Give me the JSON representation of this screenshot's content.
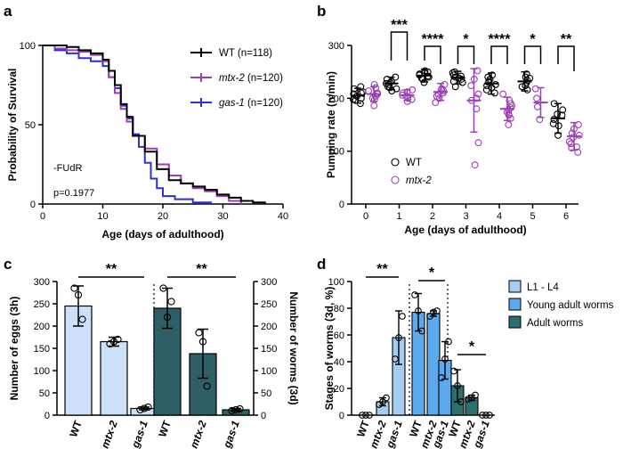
{
  "figure": {
    "labels": [
      "a",
      "b",
      "c",
      "d"
    ]
  },
  "chart_data": [
    {
      "panel": "a",
      "type": "line",
      "subtype": "survival-step",
      "xlabel": "Age (days of adulthood)",
      "ylabel": "Probability of Survival",
      "xlim": [
        0,
        40
      ],
      "ylim": [
        0,
        100
      ],
      "xticks": [
        0,
        10,
        20,
        30,
        40
      ],
      "yticks": [
        0,
        50,
        100
      ],
      "annotations": [
        "-FUdR",
        "p=0.1977"
      ],
      "series": [
        {
          "name": "WT",
          "legend": "WT (n=118)",
          "italic": false,
          "color": "#000000",
          "points": [
            [
              0,
              100
            ],
            [
              2,
              100
            ],
            [
              4,
              99
            ],
            [
              6,
              97
            ],
            [
              8,
              95
            ],
            [
              10,
              91
            ],
            [
              11,
              84
            ],
            [
              12,
              75
            ],
            [
              13,
              63
            ],
            [
              14,
              55
            ],
            [
              15,
              43
            ],
            [
              17,
              33
            ],
            [
              19,
              22
            ],
            [
              21,
              15
            ],
            [
              23,
              13
            ],
            [
              25,
              11
            ],
            [
              27,
              9
            ],
            [
              29,
              6
            ],
            [
              31,
              4
            ],
            [
              33,
              2
            ],
            [
              35,
              1
            ],
            [
              37,
              0
            ]
          ]
        },
        {
          "name": "mtx-2",
          "legend": "mtx-2 (n=120)",
          "italic": true,
          "color": "#9b3fb5",
          "points": [
            [
              0,
              100
            ],
            [
              2,
              98
            ],
            [
              4,
              97
            ],
            [
              6,
              96
            ],
            [
              8,
              94
            ],
            [
              10,
              90
            ],
            [
              11,
              80
            ],
            [
              12,
              70
            ],
            [
              13,
              60
            ],
            [
              14,
              52
            ],
            [
              15,
              43
            ],
            [
              17,
              35
            ],
            [
              19,
              25
            ],
            [
              21,
              18
            ],
            [
              23,
              13
            ],
            [
              25,
              10
            ],
            [
              27,
              8
            ],
            [
              29,
              5
            ],
            [
              31,
              2
            ],
            [
              33,
              0
            ]
          ]
        },
        {
          "name": "gas-1",
          "legend": "gas-1 (n=120)",
          "italic": true,
          "color": "#2f2fd8",
          "points": [
            [
              0,
              100
            ],
            [
              2,
              97
            ],
            [
              4,
              95
            ],
            [
              6,
              92
            ],
            [
              8,
              90
            ],
            [
              10,
              87
            ],
            [
              11,
              80
            ],
            [
              12,
              73
            ],
            [
              13,
              62
            ],
            [
              14,
              54
            ],
            [
              15,
              44
            ],
            [
              16,
              36
            ],
            [
              17,
              26
            ],
            [
              18,
              16
            ],
            [
              19,
              10
            ],
            [
              20,
              5
            ],
            [
              22,
              3
            ],
            [
              25,
              1
            ],
            [
              28,
              0
            ]
          ]
        }
      ]
    },
    {
      "panel": "b",
      "type": "scatter",
      "subtype": "dot-plot-mean-sd",
      "xlabel": "Age (days of adulthood)",
      "ylabel": "Pumping rate (n/min)",
      "ylim": [
        0,
        300
      ],
      "yticks": [
        0,
        100,
        200,
        300
      ],
      "categories": [
        "0",
        "1",
        "2",
        "3",
        "4",
        "5",
        "6"
      ],
      "legend": [
        "WT",
        "mtx-2"
      ],
      "series": [
        {
          "name": "WT",
          "color": "#000000",
          "mean": [
            205,
            228,
            243,
            239,
            228,
            232,
            162
          ],
          "sd": [
            14,
            12,
            12,
            12,
            20,
            18,
            28
          ],
          "points": [
            [
              190,
              198,
              204,
              210,
              218,
              200,
              208,
              212,
              196,
              222
            ],
            [
              214,
              220,
              226,
              232,
              236,
              228,
              240,
              222,
              230,
              218
            ],
            [
              230,
              236,
              240,
              246,
              250,
              244,
              252,
              238,
              248,
              242
            ],
            [
              222,
              230,
              238,
              244,
              250,
              236,
              242,
              248,
              232,
              240
            ],
            [
              210,
              220,
              226,
              232,
              240,
              224,
              236,
              216,
              244,
              230
            ],
            [
              216,
              224,
              230,
              238,
              246,
              222,
              234,
              240
            ],
            [
              130,
              148,
              160,
              170,
              178,
              190,
              152,
              168
            ]
          ]
        },
        {
          "name": "mtx-2",
          "color": "#9b3fb5",
          "mean": [
            208,
            206,
            212,
            196,
            180,
            192,
            128
          ],
          "sd": [
            14,
            10,
            16,
            60,
            22,
            28,
            26
          ],
          "points": [
            [
              186,
              198,
              208,
              214,
              220,
              204,
              210,
              226,
              200
            ],
            [
              194,
              200,
              206,
              212,
              216,
              204,
              198,
              210
            ],
            [
              192,
              200,
              208,
              216,
              226,
              210,
              204,
              218,
              214
            ],
            [
              74,
              116,
              180,
              200,
              236,
              252,
              208,
              224,
              196
            ],
            [
              150,
              162,
              170,
              178,
              186,
              196,
              208,
              174,
              182,
              168,
              190
            ],
            [
              160,
              184,
              200,
              218
            ],
            [
              98,
              108,
              118,
              126,
              134,
              142,
              150,
              114,
              130,
              106
            ]
          ]
        }
      ],
      "significance": [
        "***",
        "****",
        "*",
        "****",
        "*",
        "**"
      ]
    },
    {
      "panel": "c",
      "type": "bar",
      "subtype": "dual-axis-bar-with-points",
      "groups": [
        {
          "ylabel": "Number of eggs (3h)",
          "axis": "left",
          "color": "#cce1f7",
          "categories": [
            "WT",
            "mtx-2",
            "gas-1"
          ],
          "values": [
            245,
            165,
            15
          ],
          "sd": [
            45,
            10,
            3
          ],
          "points": [
            [
              285,
              270,
              215
            ],
            [
              160,
              165,
              170
            ],
            [
              12,
              15,
              18
            ]
          ],
          "significance": "**"
        },
        {
          "ylabel": "Number of worms (3d)",
          "axis": "right",
          "color": "#2e5f66",
          "categories": [
            "WT",
            "mtx-2",
            "gas-1"
          ],
          "values": [
            240,
            138,
            12
          ],
          "sd": [
            45,
            55,
            3
          ],
          "points": [
            [
              285,
              220,
              255
            ],
            [
              185,
              165,
              65
            ],
            [
              10,
              12,
              14
            ]
          ],
          "significance": "**"
        }
      ],
      "ylim": [
        0,
        300
      ],
      "yticks": [
        0,
        50,
        100,
        150,
        200,
        250,
        300
      ]
    },
    {
      "panel": "d",
      "type": "bar",
      "subtype": "grouped-bar-with-points",
      "ylabel": "Stages of worms (3d, %)",
      "ylim": [
        0,
        100
      ],
      "yticks": [
        0,
        20,
        40,
        60,
        80,
        100
      ],
      "categories": [
        "WT",
        "mtx-2",
        "gas-1"
      ],
      "series": [
        {
          "name": "L1 - L4",
          "color": "#a6cdf0",
          "values": [
            0,
            10,
            58
          ],
          "sd": [
            0,
            3,
            20
          ],
          "points": [
            [
              0,
              0,
              0
            ],
            [
              8,
              10,
              13
            ],
            [
              42,
              58,
              74
            ]
          ],
          "significance": "**"
        },
        {
          "name": "Young adult worms",
          "color": "#5da9ee",
          "values": [
            77,
            76,
            41
          ],
          "sd": [
            14,
            2,
            14
          ],
          "points": [
            [
              90,
              78,
              63
            ],
            [
              74,
              77,
              78
            ],
            [
              28,
              42,
              55
            ]
          ],
          "significance": "*"
        },
        {
          "name": "Adult worms",
          "color": "#2e6e6e",
          "values": [
            22,
            13,
            0
          ],
          "sd": [
            12,
            2,
            0
          ],
          "points": [
            [
              33,
              22,
              10
            ],
            [
              12,
              13,
              15
            ],
            [
              0,
              0,
              0
            ]
          ],
          "significance": "*"
        }
      ]
    }
  ]
}
